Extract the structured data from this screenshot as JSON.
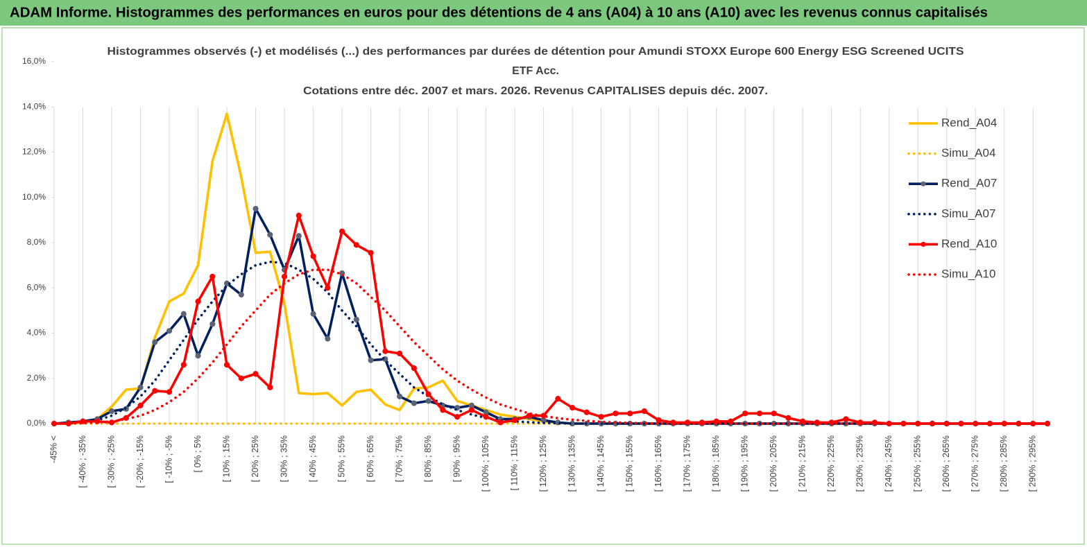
{
  "header": {
    "title": "ADAM Informe. Histogrammes des performances en euros pour des détentions de 4 ans (A04) à 10 ans (A10) avec les revenus connus capitalisés"
  },
  "chart_data": {
    "type": "line",
    "title": [
      "Histogrammes observés (-) et modélisés (...) des performances par durées de détention pour Amundi STOXX Europe 600 Energy ESG Screened UCITS",
      "ETF Acc.",
      "Cotations entre déc. 2007 et mars. 2026. Revenus CAPITALISES depuis déc. 2007."
    ],
    "categories": [
      "-45% <",
      null,
      "[ -40% ; -35%",
      null,
      "[ -30% ; -25%",
      null,
      "[ -20% ; -15%",
      null,
      "[ -10% ; -5%",
      null,
      "[ 0% ; 5%",
      null,
      "[ 10% ; 15%",
      null,
      "[ 20% ; 25%",
      null,
      "[ 30% ; 35%",
      null,
      "[ 40% ; 45%",
      null,
      "[ 50% ; 55%",
      null,
      "[ 60% ; 65%",
      null,
      "[ 70% ; 75%",
      null,
      "[ 80% ; 85%",
      null,
      "[ 90% ; 95%",
      null,
      "[ 100% ; 105%",
      null,
      "[ 110% ; 115%",
      null,
      "[ 120% ; 125%",
      null,
      "[ 130% ; 135%",
      null,
      "[ 140% ; 145%",
      null,
      "[ 150% ; 155%",
      null,
      "[ 160% ; 165%",
      null,
      "[ 170% ; 175%",
      null,
      "[ 180% ; 185%",
      null,
      "[ 190% ; 195%",
      null,
      "[ 200% ; 205%",
      null,
      "[ 210% ; 215%",
      null,
      "[ 220% ; 225%",
      null,
      "[ 230% ; 235%",
      null,
      "[ 240% ; 245%",
      null,
      "[ 250% ; 255%",
      null,
      "[ 260% ; 265%",
      null,
      "[ 270% ; 275%",
      null,
      "[ 280% ; 285%",
      null,
      "[ 290% ; 295%",
      null
    ],
    "series": [
      {
        "name": "Rend_A04",
        "color": "#ffc000",
        "style": "solid",
        "values": [
          0,
          0,
          0.05,
          0.2,
          0.75,
          1.5,
          1.55,
          3.8,
          5.4,
          5.75,
          7.0,
          11.6,
          13.7,
          10.9,
          7.55,
          7.6,
          5.3,
          1.35,
          1.3,
          1.35,
          0.8,
          1.4,
          1.5,
          0.85,
          0.6,
          1.55,
          1.6,
          1.9,
          1.0,
          0.8,
          0.6,
          0.4,
          0.3,
          0.2,
          0.1,
          0.05,
          0,
          0,
          0,
          0,
          0,
          0,
          0,
          0,
          0,
          0,
          0,
          0,
          0,
          0,
          0,
          0,
          0,
          0,
          0,
          0,
          0,
          0,
          0,
          0,
          0,
          0,
          0,
          0,
          0,
          0,
          0,
          0,
          0,
          0
        ]
      },
      {
        "name": "Simu_A04",
        "color": "#ffc000",
        "style": "dotted",
        "values": [
          0,
          0,
          0,
          0,
          0,
          0,
          0,
          0,
          0,
          0,
          0,
          0,
          0,
          0,
          0,
          0,
          0,
          0,
          0,
          0,
          0,
          0,
          0,
          0,
          0,
          0,
          0,
          0,
          0,
          0,
          0,
          0,
          0,
          0,
          0,
          0,
          0,
          0,
          0,
          0,
          0,
          0,
          0,
          0,
          0,
          0,
          0,
          0,
          0,
          0,
          0,
          0,
          0,
          0,
          0,
          0,
          0,
          0,
          0,
          0,
          0,
          0,
          0,
          0,
          0,
          0,
          0,
          0,
          0,
          0
        ]
      },
      {
        "name": "Rend_A07",
        "color": "#002060",
        "style": "solid",
        "marker_color": "#5b6475",
        "values": [
          0,
          0.05,
          0.1,
          0.2,
          0.55,
          0.65,
          1.6,
          3.6,
          4.1,
          4.85,
          3.0,
          4.4,
          6.2,
          5.7,
          9.5,
          8.35,
          6.8,
          8.3,
          4.85,
          3.75,
          6.65,
          4.6,
          2.8,
          2.85,
          1.2,
          0.9,
          1.0,
          0.8,
          0.7,
          0.8,
          0.5,
          0.2,
          0.2,
          0.3,
          0.15,
          0.05,
          0,
          0,
          0,
          0,
          0,
          0,
          0,
          0,
          0,
          0,
          0,
          0,
          0,
          0,
          0,
          0,
          0,
          0,
          0,
          0,
          0,
          0,
          0,
          0,
          0,
          0,
          0,
          0,
          0,
          0,
          0,
          0,
          0,
          0
        ]
      },
      {
        "name": "Simu_A07",
        "color": "#002060",
        "style": "dotted",
        "values": [
          0,
          0.02,
          0.05,
          0.15,
          0.35,
          0.7,
          1.2,
          1.9,
          2.8,
          3.7,
          4.6,
          5.4,
          6.1,
          6.6,
          7.0,
          7.15,
          7.1,
          6.8,
          6.4,
          5.8,
          5.0,
          4.3,
          3.5,
          2.8,
          2.2,
          1.6,
          1.2,
          0.85,
          0.6,
          0.4,
          0.25,
          0.15,
          0.1,
          0.06,
          0.03,
          0.02,
          0,
          0,
          0,
          0,
          0,
          0,
          0,
          0,
          0,
          0,
          0,
          0,
          0,
          0,
          0,
          0,
          0,
          0,
          0,
          0,
          0,
          0,
          0,
          0,
          0,
          0,
          0,
          0,
          0,
          0,
          0,
          0,
          0,
          0
        ]
      },
      {
        "name": "Rend_A10",
        "color": "#ff0000",
        "style": "solid",
        "marker_color": "#ff0000",
        "values": [
          0,
          0,
          0.1,
          0.1,
          0.05,
          0.25,
          0.8,
          1.45,
          1.4,
          2.6,
          5.4,
          6.5,
          2.6,
          2.0,
          2.2,
          1.6,
          6.5,
          9.2,
          7.4,
          6.0,
          8.5,
          7.9,
          7.55,
          3.2,
          3.1,
          2.45,
          1.3,
          0.6,
          0.3,
          0.6,
          0.3,
          0.05,
          0.15,
          0.35,
          0.35,
          1.1,
          0.7,
          0.5,
          0.3,
          0.45,
          0.45,
          0.55,
          0.15,
          0.05,
          0.05,
          0.05,
          0.1,
          0.1,
          0.45,
          0.45,
          0.45,
          0.25,
          0.1,
          0.05,
          0.05,
          0.2,
          0.05,
          0.05,
          0,
          0,
          0,
          0,
          0,
          0,
          0,
          0,
          0,
          0,
          0,
          0
        ]
      },
      {
        "name": "Simu_A10",
        "color": "#ff0000",
        "style": "dotted",
        "values": [
          0,
          0,
          0.02,
          0.05,
          0.1,
          0.2,
          0.35,
          0.6,
          0.95,
          1.4,
          2.0,
          2.7,
          3.5,
          4.3,
          5.0,
          5.7,
          6.2,
          6.6,
          6.8,
          6.8,
          6.6,
          6.2,
          5.6,
          5.0,
          4.3,
          3.6,
          3.0,
          2.4,
          1.9,
          1.5,
          1.15,
          0.85,
          0.65,
          0.45,
          0.33,
          0.24,
          0.17,
          0.12,
          0.08,
          0.05,
          0.03,
          0.02,
          0,
          0,
          0,
          0,
          0,
          0,
          0,
          0,
          0,
          0,
          0,
          0,
          0,
          0,
          0,
          0,
          0,
          0,
          0,
          0,
          0,
          0,
          0,
          0,
          0,
          0,
          0,
          0
        ]
      }
    ],
    "ylim": [
      0,
      16
    ],
    "yticks": [
      {
        "value": 0,
        "label": "0,0%"
      },
      {
        "value": 2,
        "label": "2,0%"
      },
      {
        "value": 4,
        "label": "4,0%"
      },
      {
        "value": 6,
        "label": "6,0%"
      },
      {
        "value": 8,
        "label": "8,0%"
      },
      {
        "value": 10,
        "label": "10,0%"
      },
      {
        "value": 12,
        "label": "12,0%"
      },
      {
        "value": 14,
        "label": "14,0%"
      },
      {
        "value": 16,
        "label": "16,0%"
      }
    ],
    "grid": "x",
    "legend": "right"
  }
}
